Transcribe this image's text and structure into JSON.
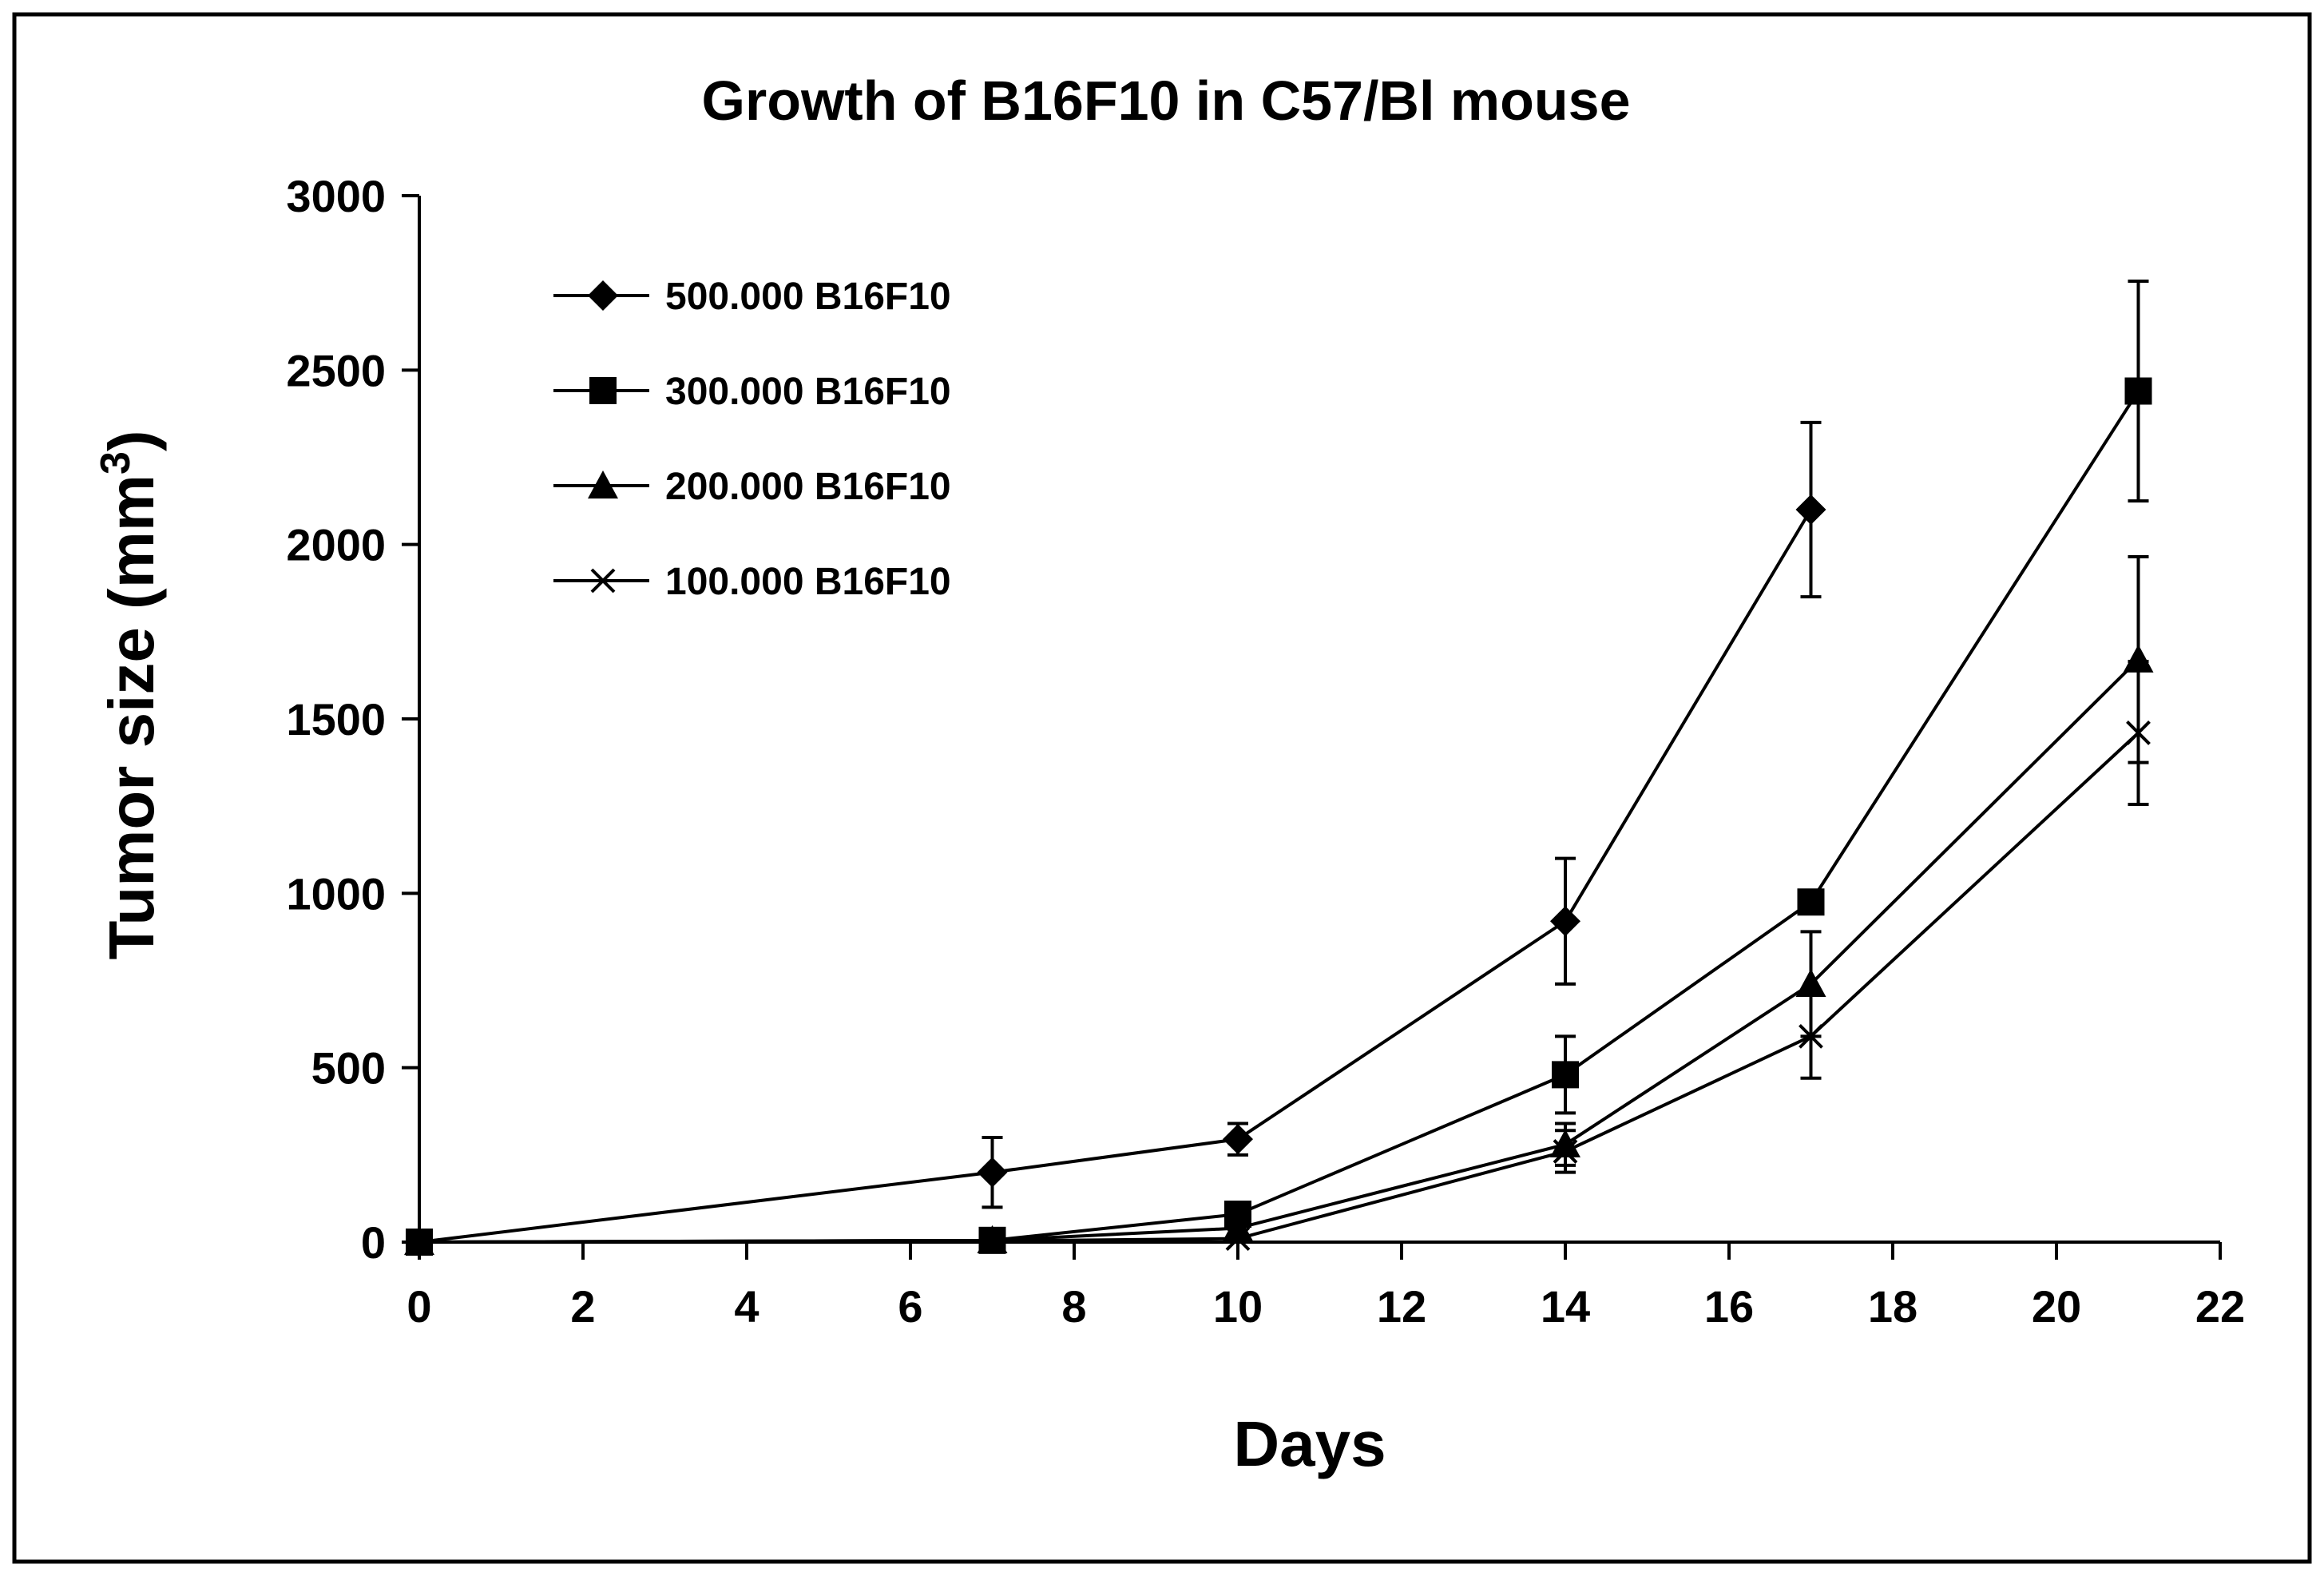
{
  "chart_data": {
    "type": "line",
    "title": "Growth of B16F10 in C57/Bl mouse",
    "xlabel": "Days",
    "ylabel": "Tumor size (mm",
    "ylabel_sup": "3",
    "ylabel_end": ")",
    "xlim": [
      0,
      22
    ],
    "ylim": [
      0,
      3000
    ],
    "xticks": [
      0,
      2,
      4,
      6,
      8,
      10,
      12,
      14,
      16,
      18,
      20,
      22
    ],
    "yticks": [
      0,
      500,
      1000,
      1500,
      2000,
      2500,
      3000
    ],
    "legend_position": "top-left",
    "series": [
      {
        "name": "500.000 B16F10",
        "marker": "diamond",
        "x": [
          0,
          7,
          10,
          14,
          17
        ],
        "y": [
          0,
          200,
          295,
          920,
          2100
        ],
        "err": [
          0,
          100,
          45,
          180,
          250
        ]
      },
      {
        "name": "300.000 B16F10",
        "marker": "square",
        "x": [
          0,
          7,
          10,
          14,
          17,
          21
        ],
        "y": [
          0,
          5,
          80,
          480,
          975,
          2440
        ],
        "err": [
          0,
          0,
          0,
          110,
          0,
          315
        ]
      },
      {
        "name": "200.000 B16F10",
        "marker": "triangle",
        "x": [
          0,
          7,
          10,
          14,
          17,
          21
        ],
        "y": [
          0,
          5,
          40,
          280,
          740,
          1670
        ],
        "err": [
          0,
          0,
          0,
          60,
          150,
          295
        ]
      },
      {
        "name": "100.000 B16F10",
        "marker": "x",
        "x": [
          0,
          7,
          10,
          14,
          17,
          21
        ],
        "y": [
          0,
          3,
          10,
          260,
          590,
          1460
        ],
        "err": [
          0,
          0,
          0,
          60,
          120,
          205
        ]
      }
    ]
  }
}
